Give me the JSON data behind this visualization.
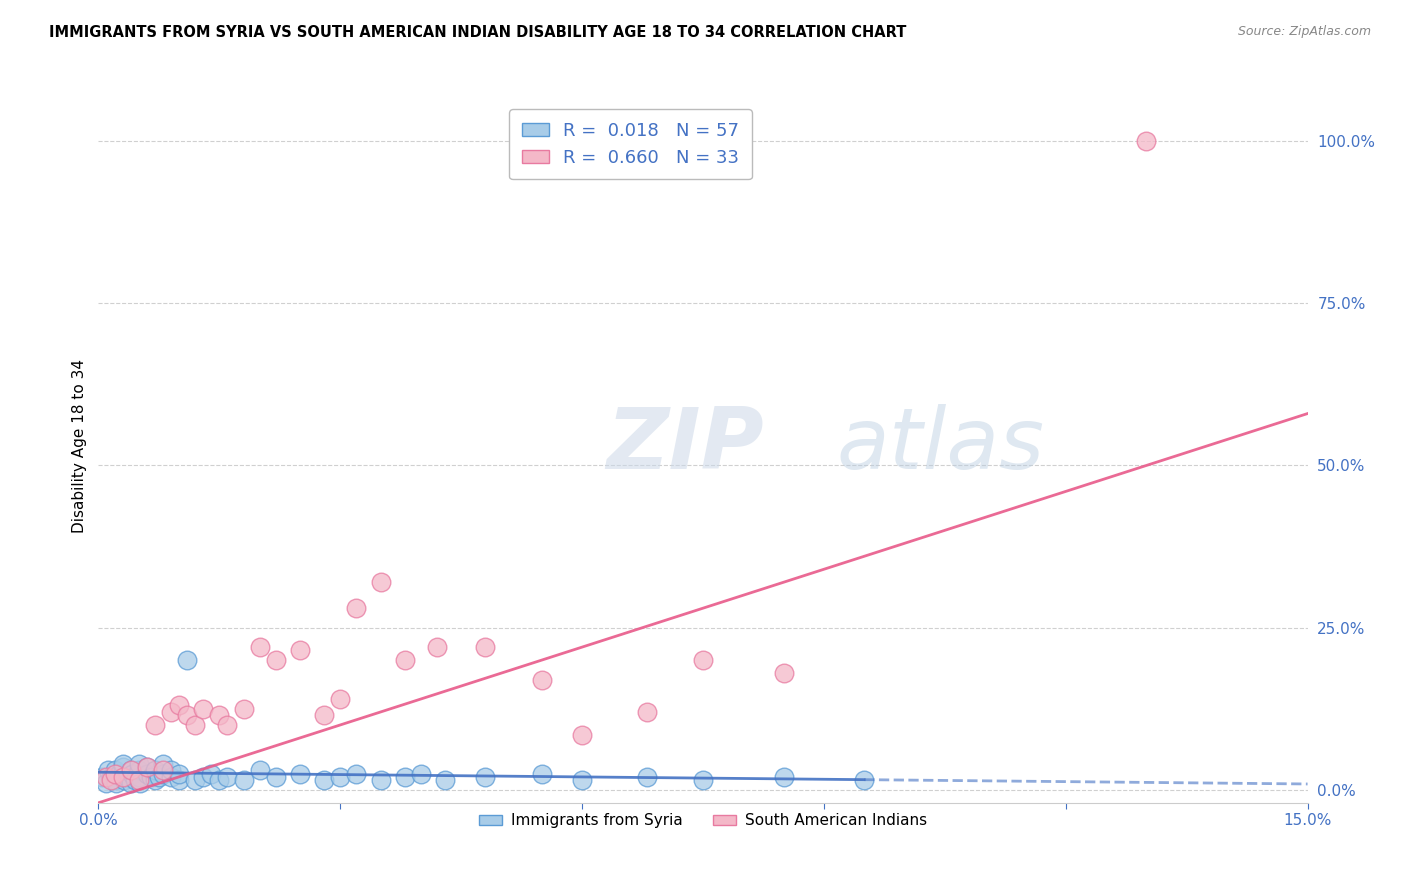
{
  "title": "IMMIGRANTS FROM SYRIA VS SOUTH AMERICAN INDIAN DISABILITY AGE 18 TO 34 CORRELATION CHART",
  "source": "Source: ZipAtlas.com",
  "ylabel": "Disability Age 18 to 34",
  "xlim": [
    0.0,
    0.15
  ],
  "ylim": [
    -0.02,
    1.08
  ],
  "plot_ylim": [
    0.0,
    1.05
  ],
  "xticks": [
    0.0,
    0.03,
    0.06,
    0.09,
    0.12,
    0.15
  ],
  "xtick_labels": [
    "0.0%",
    "",
    "",
    "",
    "",
    "15.0%"
  ],
  "ytick_positions_right": [
    0.0,
    0.25,
    0.5,
    0.75,
    1.0
  ],
  "ytick_labels_right": [
    "0.0%",
    "25.0%",
    "50.0%",
    "75.0%",
    "100.0%"
  ],
  "watermark_zip": "ZIP",
  "watermark_atlas": "atlas",
  "legend_label1": "R =  0.018   N = 57",
  "legend_label2": "R =  0.660   N = 33",
  "blue_fill": "#a8cce8",
  "blue_edge": "#5b9bd5",
  "blue_line": "#4472c4",
  "pink_fill": "#f4b8c8",
  "pink_edge": "#e87aa0",
  "pink_line": "#e85a8a",
  "grid_color": "#d0d0d0",
  "axis_color": "#cccccc",
  "right_label_color": "#4472c4",
  "bottom_label_color": "#4472c4",
  "syria_x": [
    0.0005,
    0.001,
    0.0012,
    0.0015,
    0.002,
    0.002,
    0.0022,
    0.0025,
    0.003,
    0.003,
    0.003,
    0.0032,
    0.0035,
    0.004,
    0.004,
    0.0042,
    0.0045,
    0.005,
    0.005,
    0.005,
    0.0052,
    0.006,
    0.006,
    0.0065,
    0.007,
    0.007,
    0.0075,
    0.008,
    0.008,
    0.009,
    0.009,
    0.01,
    0.01,
    0.011,
    0.012,
    0.013,
    0.014,
    0.015,
    0.016,
    0.018,
    0.02,
    0.022,
    0.025,
    0.028,
    0.03,
    0.032,
    0.035,
    0.038,
    0.04,
    0.043,
    0.048,
    0.055,
    0.06,
    0.068,
    0.075,
    0.085,
    0.095
  ],
  "syria_y": [
    0.02,
    0.01,
    0.03,
    0.02,
    0.015,
    0.03,
    0.01,
    0.025,
    0.02,
    0.035,
    0.04,
    0.015,
    0.02,
    0.01,
    0.03,
    0.025,
    0.015,
    0.02,
    0.03,
    0.04,
    0.01,
    0.025,
    0.035,
    0.02,
    0.015,
    0.03,
    0.02,
    0.025,
    0.04,
    0.02,
    0.03,
    0.015,
    0.025,
    0.2,
    0.015,
    0.02,
    0.025,
    0.015,
    0.02,
    0.015,
    0.03,
    0.02,
    0.025,
    0.015,
    0.02,
    0.025,
    0.015,
    0.02,
    0.025,
    0.015,
    0.02,
    0.025,
    0.015,
    0.02,
    0.015,
    0.02,
    0.015
  ],
  "sa_indian_x": [
    0.001,
    0.0015,
    0.002,
    0.003,
    0.004,
    0.005,
    0.006,
    0.007,
    0.008,
    0.009,
    0.01,
    0.011,
    0.012,
    0.013,
    0.015,
    0.016,
    0.018,
    0.02,
    0.022,
    0.025,
    0.028,
    0.03,
    0.032,
    0.035,
    0.038,
    0.042,
    0.048,
    0.055,
    0.06,
    0.068,
    0.075,
    0.085,
    0.13
  ],
  "sa_indian_y": [
    0.02,
    0.015,
    0.025,
    0.02,
    0.03,
    0.015,
    0.035,
    0.1,
    0.03,
    0.12,
    0.13,
    0.115,
    0.1,
    0.125,
    0.115,
    0.1,
    0.125,
    0.22,
    0.2,
    0.215,
    0.115,
    0.14,
    0.28,
    0.32,
    0.2,
    0.22,
    0.22,
    0.17,
    0.085,
    0.12,
    0.2,
    0.18,
    1.0
  ]
}
